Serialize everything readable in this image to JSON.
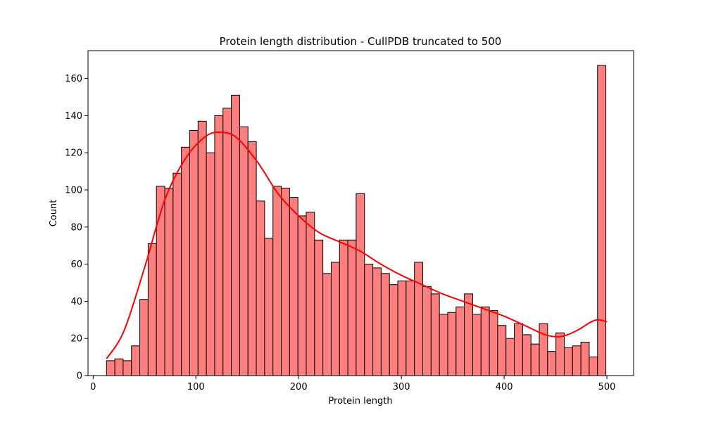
{
  "chart_data": {
    "type": "bar",
    "title": "Protein length distribution - CullPDB truncated to 500",
    "xlabel": "Protein length",
    "ylabel": "Count",
    "xlim": [
      -5,
      526
    ],
    "ylim": [
      0,
      175
    ],
    "xticks": [
      0,
      100,
      200,
      300,
      400,
      500
    ],
    "yticks": [
      0,
      20,
      40,
      60,
      80,
      100,
      120,
      140,
      160
    ],
    "bin_start": 13,
    "bin_width": 8.1,
    "counts": [
      8,
      9,
      8,
      16,
      41,
      71,
      102,
      101,
      109,
      123,
      132,
      137,
      120,
      140,
      144,
      151,
      134,
      126,
      94,
      74,
      102,
      101,
      96,
      86,
      88,
      73,
      55,
      61,
      73,
      73,
      98,
      60,
      58,
      55,
      49,
      51,
      51,
      61,
      48,
      44,
      33,
      34,
      37,
      44,
      33,
      37,
      35,
      27,
      20,
      28,
      22,
      17,
      28,
      13,
      23,
      15,
      16,
      18,
      10,
      167
    ],
    "kde": {
      "x": [
        13,
        30,
        50,
        70,
        90,
        110,
        125,
        140,
        160,
        180,
        200,
        220,
        240,
        260,
        280,
        300,
        320,
        340,
        360,
        380,
        400,
        420,
        440,
        455,
        470,
        485,
        492,
        500
      ],
      "y": [
        9,
        24,
        58,
        95,
        117,
        129,
        131,
        128,
        115,
        98,
        86,
        77,
        72,
        67,
        60,
        54,
        49,
        44,
        40,
        36,
        32,
        27,
        22,
        21,
        24,
        29,
        30,
        29
      ]
    },
    "colors": {
      "bar_fill": "#ff7f7f",
      "bar_edge": "#000000",
      "kde_line": "#ff0000"
    },
    "grid": false,
    "legend": "none"
  }
}
